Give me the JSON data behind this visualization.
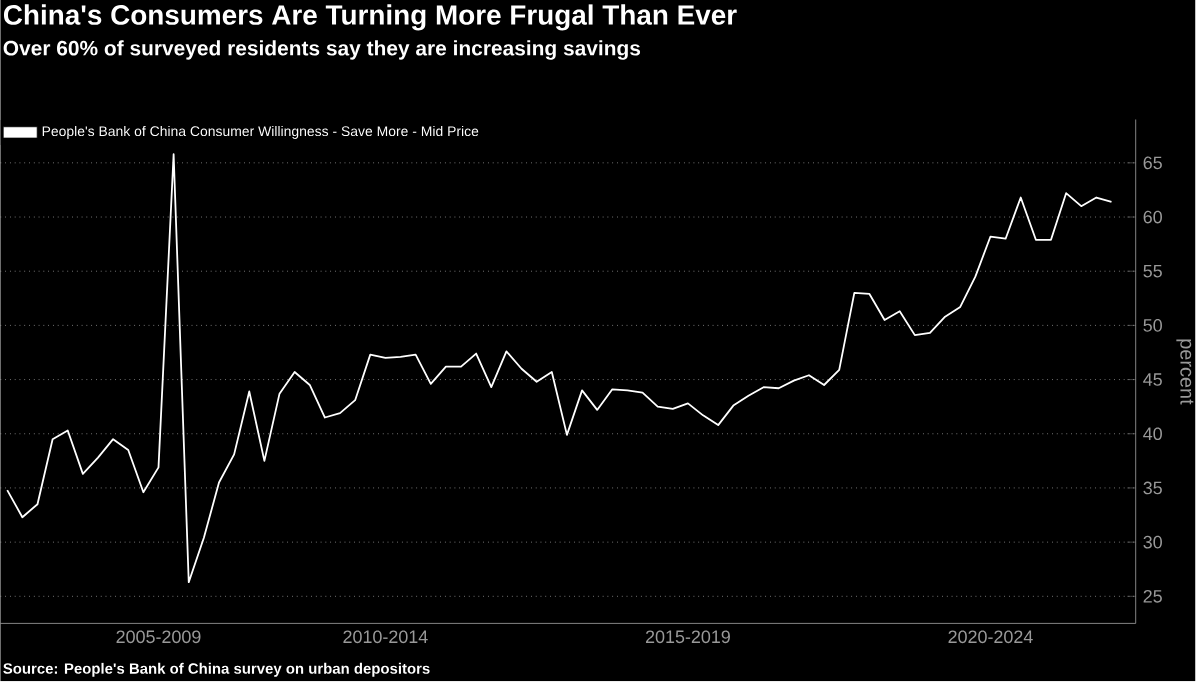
{
  "chart_data": {
    "type": "line",
    "title": "China's Consumers Are Turning More Frugal Than Ever",
    "subtitle": "Over 60% of surveyed residents say they are increasing savings",
    "ylabel": "percent",
    "annotations": [
      "Source: People's Bank of China survey on urban depositors"
    ],
    "categories": [
      null,
      null,
      null,
      null,
      null,
      null,
      null,
      null,
      null,
      null,
      "2005-2009",
      null,
      null,
      null,
      null,
      null,
      null,
      null,
      null,
      null,
      null,
      null,
      null,
      null,
      null,
      "2010-2014",
      null,
      null,
      null,
      null,
      null,
      null,
      null,
      null,
      null,
      null,
      null,
      null,
      null,
      null,
      null,
      null,
      null,
      null,
      null,
      "2015-2019",
      null,
      null,
      null,
      null,
      null,
      null,
      null,
      null,
      null,
      null,
      null,
      null,
      null,
      null,
      null,
      null,
      null,
      null,
      null,
      "2020-2024",
      null,
      null,
      null,
      null,
      null,
      null,
      null,
      null
    ],
    "series": [
      {
        "name": "People's Bank of China Consumer Willingness - Save More - Mid Price",
        "color": "#ffffff",
        "values": [
          34.8,
          32.3,
          33.5,
          39.5,
          40.3,
          36.3,
          37.8,
          39.5,
          38.5,
          34.6,
          36.9,
          65.8,
          26.3,
          30.4,
          35.5,
          38.1,
          43.9,
          37.5,
          43.7,
          45.7,
          44.5,
          41.5,
          41.9,
          43.1,
          47.3,
          47.0,
          47.1,
          47.3,
          44.6,
          46.2,
          46.2,
          47.4,
          44.3,
          47.6,
          46.0,
          44.8,
          45.7,
          39.9,
          44.0,
          42.2,
          44.1,
          44.0,
          43.8,
          42.5,
          42.3,
          42.8,
          41.7,
          40.8,
          42.6,
          43.5,
          44.3,
          44.2,
          44.9,
          45.4,
          44.5,
          45.9,
          53.0,
          52.9,
          50.5,
          51.3,
          49.1,
          49.3,
          50.8,
          51.7,
          54.5,
          58.2,
          58.0,
          61.8,
          57.9,
          57.9,
          62.2,
          61.0,
          61.8,
          61.4
        ]
      }
    ],
    "ylim": [
      22.5,
      69
    ],
    "yticks": [
      25,
      30,
      35,
      40,
      45,
      50,
      55,
      60,
      65
    ],
    "grid": "y",
    "legend": "top left",
    "marker": "none",
    "line_style": "solid"
  }
}
